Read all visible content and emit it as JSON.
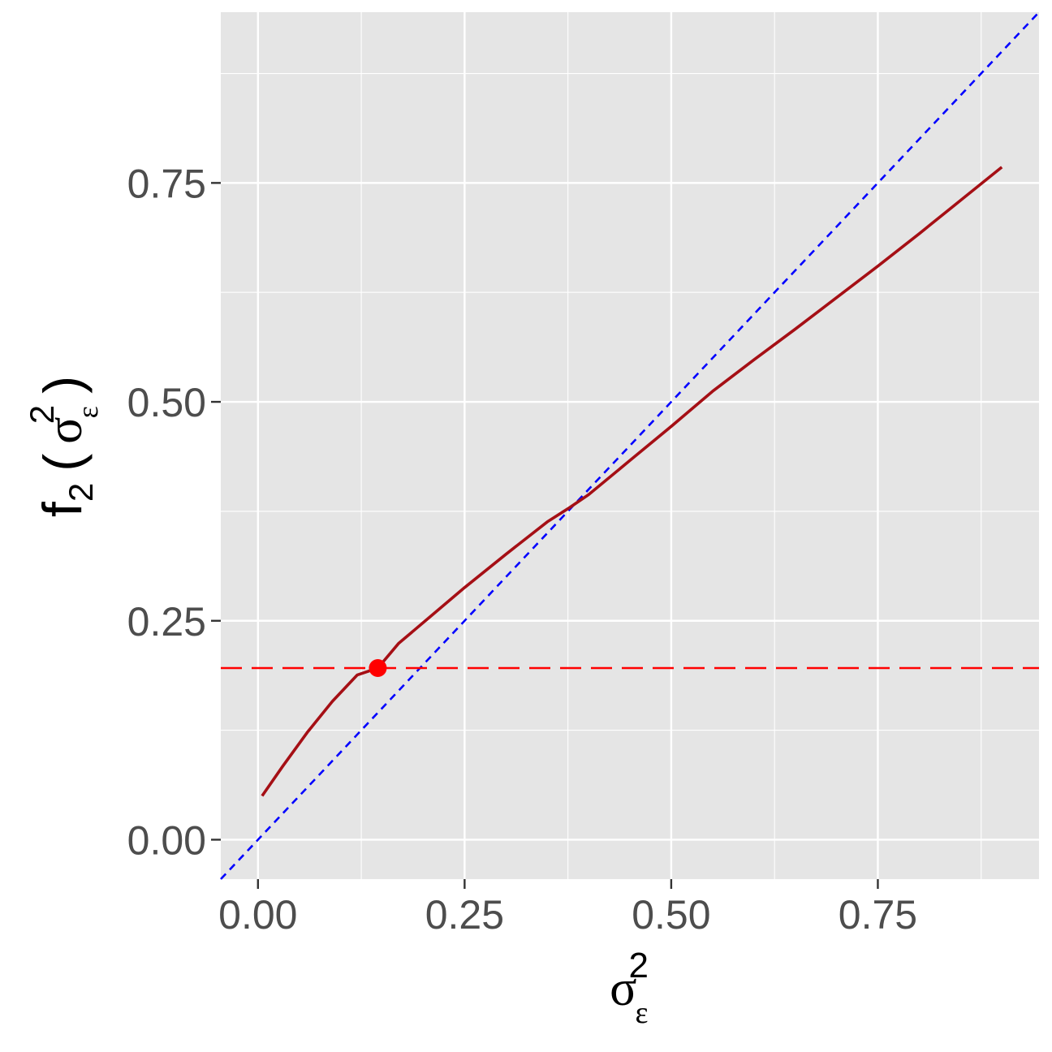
{
  "chart_data": {
    "type": "line",
    "title": "",
    "xlabel": "σ_ε^2",
    "ylabel": "f_2 ( σ_ε^2 )",
    "xlabel_parts": {
      "base": "σ",
      "sub": "ε",
      "sup": "2"
    },
    "ylabel_parts": {
      "f": "f",
      "f_sub": "2",
      "open": "(",
      "base": "σ",
      "sub": "ε",
      "sup": "2",
      "close": ")"
    },
    "xlim": [
      -0.045,
      0.945
    ],
    "ylim": [
      -0.045,
      0.945
    ],
    "x_ticks": [
      0.0,
      0.25,
      0.5,
      0.75
    ],
    "x_tick_labels": [
      "0.00",
      "0.25",
      "0.50",
      "0.75"
    ],
    "y_ticks": [
      0.0,
      0.25,
      0.5,
      0.75
    ],
    "y_tick_labels": [
      "0.00",
      "0.25",
      "0.50",
      "0.75"
    ],
    "x_minor": [
      0.125,
      0.375,
      0.625,
      0.875
    ],
    "y_minor": [
      0.125,
      0.375,
      0.625,
      0.875
    ],
    "grid": true,
    "legend": "none",
    "series": [
      {
        "x": [
          0.005,
          0.03,
          0.06,
          0.09,
          0.12,
          0.145,
          0.17,
          0.2,
          0.25,
          0.3,
          0.35,
          0.375,
          0.4,
          0.45,
          0.5,
          0.55,
          0.6,
          0.65,
          0.7,
          0.75,
          0.8,
          0.85,
          0.9
        ],
        "y": [
          0.05,
          0.084,
          0.123,
          0.158,
          0.188,
          0.196,
          0.224,
          0.248,
          0.288,
          0.326,
          0.363,
          0.378,
          0.394,
          0.433,
          0.472,
          0.512,
          0.548,
          0.583,
          0.619,
          0.655,
          0.692,
          0.73,
          0.768
        ],
        "color": "#a50f15"
      }
    ],
    "reference_lines": [
      {
        "kind": "identity",
        "slope": 1,
        "intercept": 0,
        "style": "dotted",
        "color": "#0000ff"
      },
      {
        "kind": "horizontal",
        "y": 0.196,
        "style": "dashed",
        "color": "#ff0000"
      }
    ],
    "highlight_point": {
      "x": 0.145,
      "y": 0.196,
      "color": "#ff0000"
    },
    "panel_background": "#e5e5e5",
    "grid_color": "#ffffff"
  }
}
